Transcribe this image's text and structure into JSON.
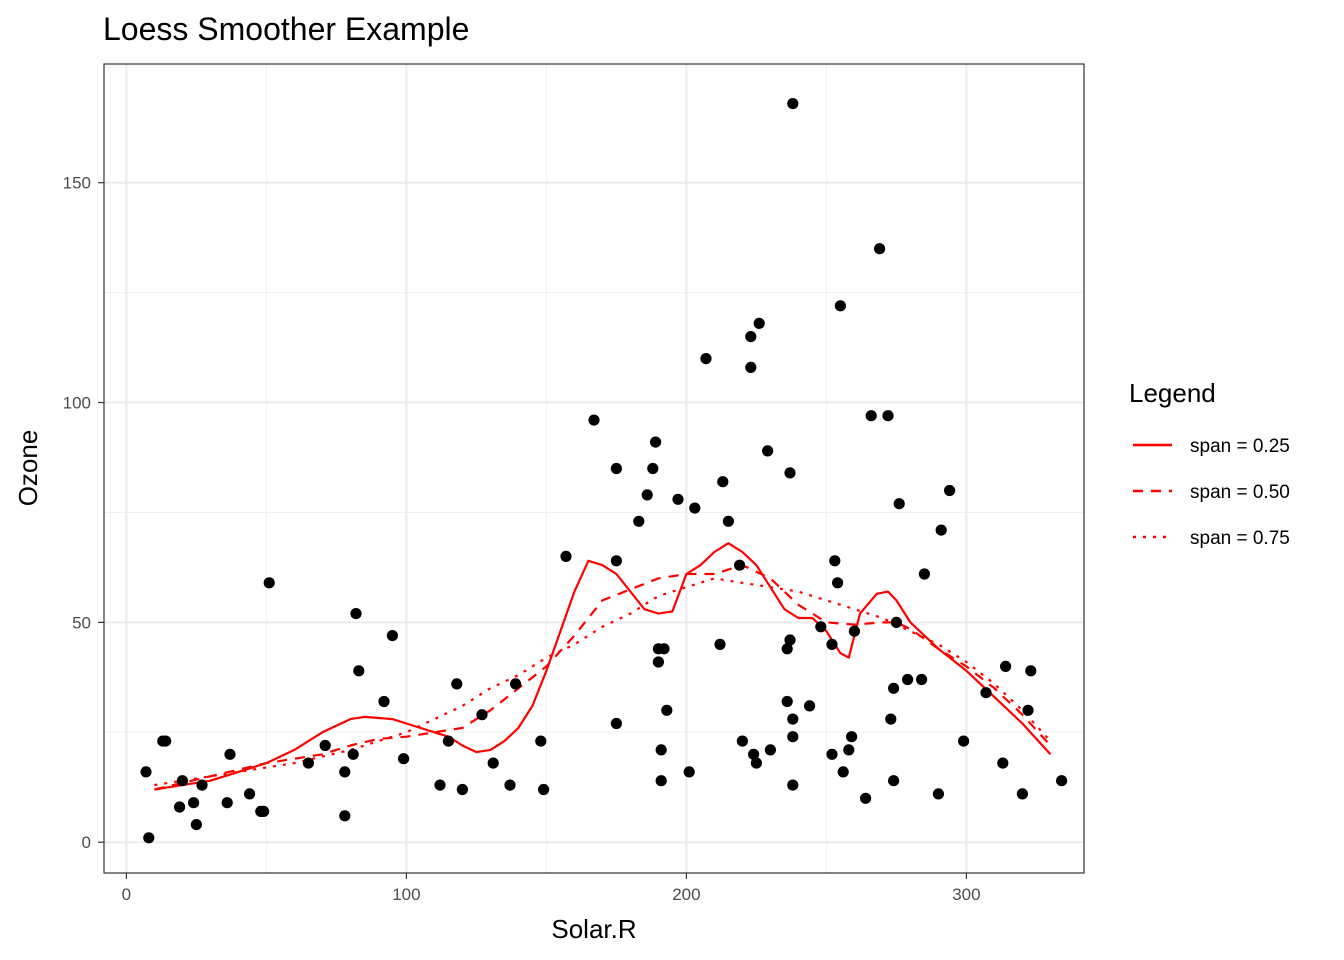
{
  "chart_data": {
    "type": "scatter",
    "title": "Loess Smoother Example",
    "xlabel": "Solar.R",
    "ylabel": "Ozone",
    "xlim": [
      -8,
      342
    ],
    "ylim": [
      -7,
      177
    ],
    "x_ticks": [
      0,
      100,
      200,
      300
    ],
    "y_ticks": [
      0,
      50,
      100,
      150
    ],
    "grid": true,
    "legend": {
      "title": "Legend",
      "placement": "right",
      "entries": [
        "span = 0.25",
        "span = 0.50",
        "span = 0.75"
      ]
    },
    "points": [
      [
        7,
        16
      ],
      [
        8,
        1
      ],
      [
        13,
        23
      ],
      [
        14,
        23
      ],
      [
        19,
        8
      ],
      [
        20,
        14
      ],
      [
        24,
        9
      ],
      [
        25,
        4
      ],
      [
        27,
        13
      ],
      [
        36,
        9
      ],
      [
        37,
        20
      ],
      [
        44,
        11
      ],
      [
        48,
        7
      ],
      [
        49,
        7
      ],
      [
        51,
        59
      ],
      [
        65,
        18
      ],
      [
        71,
        22
      ],
      [
        78,
        6
      ],
      [
        78,
        16
      ],
      [
        81,
        20
      ],
      [
        82,
        52
      ],
      [
        83,
        39
      ],
      [
        92,
        32
      ],
      [
        95,
        47
      ],
      [
        99,
        19
      ],
      [
        112,
        13
      ],
      [
        115,
        23
      ],
      [
        118,
        36
      ],
      [
        120,
        12
      ],
      [
        127,
        29
      ],
      [
        131,
        18
      ],
      [
        137,
        13
      ],
      [
        139,
        36
      ],
      [
        148,
        23
      ],
      [
        149,
        12
      ],
      [
        157,
        65
      ],
      [
        167,
        96
      ],
      [
        175,
        85
      ],
      [
        175,
        27
      ],
      [
        175,
        64
      ],
      [
        183,
        73
      ],
      [
        186,
        79
      ],
      [
        188,
        85
      ],
      [
        189,
        91
      ],
      [
        190,
        41
      ],
      [
        190,
        44
      ],
      [
        191,
        14
      ],
      [
        191,
        21
      ],
      [
        192,
        44
      ],
      [
        193,
        30
      ],
      [
        197,
        78
      ],
      [
        201,
        16
      ],
      [
        203,
        76
      ],
      [
        207,
        110
      ],
      [
        212,
        45
      ],
      [
        213,
        82
      ],
      [
        215,
        73
      ],
      [
        219,
        63
      ],
      [
        220,
        23
      ],
      [
        223,
        115
      ],
      [
        223,
        108
      ],
      [
        224,
        20
      ],
      [
        225,
        18
      ],
      [
        226,
        118
      ],
      [
        229,
        89
      ],
      [
        230,
        21
      ],
      [
        236,
        32
      ],
      [
        236,
        44
      ],
      [
        237,
        84
      ],
      [
        237,
        46
      ],
      [
        238,
        28
      ],
      [
        238,
        24
      ],
      [
        238,
        13
      ],
      [
        238,
        168
      ],
      [
        244,
        31
      ],
      [
        248,
        49
      ],
      [
        252,
        45
      ],
      [
        252,
        20
      ],
      [
        253,
        64
      ],
      [
        254,
        59
      ],
      [
        255,
        122
      ],
      [
        256,
        16
      ],
      [
        258,
        21
      ],
      [
        259,
        24
      ],
      [
        260,
        48
      ],
      [
        264,
        10
      ],
      [
        266,
        97
      ],
      [
        269,
        135
      ],
      [
        272,
        97
      ],
      [
        273,
        28
      ],
      [
        274,
        35
      ],
      [
        274,
        14
      ],
      [
        275,
        50
      ],
      [
        276,
        77
      ],
      [
        279,
        37
      ],
      [
        284,
        37
      ],
      [
        285,
        61
      ],
      [
        290,
        11
      ],
      [
        291,
        71
      ],
      [
        294,
        80
      ],
      [
        299,
        23
      ],
      [
        307,
        34
      ],
      [
        313,
        18
      ],
      [
        314,
        40
      ],
      [
        320,
        11
      ],
      [
        322,
        30
      ],
      [
        323,
        39
      ],
      [
        334,
        14
      ]
    ],
    "series": [
      {
        "name": "span = 0.25",
        "color": "#ff0000",
        "dash": "solid",
        "x": [
          10,
          20,
          30,
          40,
          50,
          60,
          70,
          80,
          85,
          95,
          100,
          110,
          115,
          120,
          125,
          130,
          135,
          140,
          145,
          150,
          155,
          160,
          165,
          170,
          175,
          180,
          185,
          190,
          195,
          200,
          205,
          210,
          215,
          220,
          225,
          230,
          235,
          240,
          245,
          250,
          255,
          258,
          262,
          268,
          272,
          275,
          280,
          290,
          300,
          310,
          320,
          330
        ],
        "y": [
          12,
          13,
          14,
          16,
          18,
          21,
          25,
          28,
          28.5,
          28,
          27,
          25,
          24,
          22,
          20.5,
          21,
          23,
          26,
          31,
          39,
          48,
          57,
          64,
          63,
          61,
          57,
          53,
          52,
          52.5,
          61,
          63,
          66,
          68,
          66,
          63,
          58,
          53,
          51,
          51,
          48,
          43,
          42,
          52,
          56.5,
          57,
          55,
          50,
          44,
          39,
          33,
          27,
          20
        ]
      },
      {
        "name": "span = 0.50",
        "color": "#ff0000",
        "dash": "10,8",
        "x": [
          10,
          20,
          30,
          40,
          50,
          60,
          70,
          80,
          90,
          100,
          110,
          120,
          130,
          140,
          150,
          160,
          170,
          180,
          190,
          200,
          210,
          220,
          230,
          240,
          250,
          260,
          270,
          275,
          280,
          290,
          300,
          310,
          320,
          330
        ],
        "y": [
          12,
          13.5,
          15,
          16.5,
          18,
          19,
          20,
          22,
          23.5,
          24,
          25,
          26,
          30,
          35,
          40,
          47,
          55,
          57.5,
          60,
          61,
          61,
          63,
          60,
          54,
          50,
          49.5,
          50,
          50,
          48.5,
          44,
          40,
          35,
          29,
          22
        ]
      },
      {
        "name": "span = 0.75",
        "color": "#ff0000",
        "dash": "3,7",
        "x": [
          10,
          20,
          30,
          40,
          50,
          60,
          70,
          80,
          90,
          100,
          110,
          120,
          130,
          140,
          150,
          160,
          170,
          180,
          190,
          200,
          210,
          220,
          230,
          240,
          250,
          260,
          270,
          280,
          290,
          300,
          310,
          320,
          330
        ],
        "y": [
          13,
          14,
          15,
          16,
          17,
          18,
          19.5,
          21,
          23,
          25,
          28,
          31,
          35,
          38,
          42,
          45,
          49,
          52,
          56,
          58,
          60,
          59,
          58,
          57,
          55,
          53,
          51,
          48,
          45,
          41,
          36,
          30,
          23
        ]
      }
    ]
  }
}
